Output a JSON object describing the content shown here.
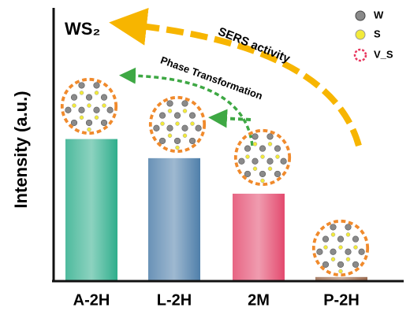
{
  "chart_data": {
    "type": "bar",
    "title": "WS₂",
    "y_label": "Intensity (a.u.)",
    "categories": [
      "A-2H",
      "L-2H",
      "2M",
      "P-2H"
    ],
    "values": [
      52,
      45,
      32,
      1.5
    ],
    "colors": [
      "#2fae8c",
      "#4f7faa",
      "#e34a6e",
      "#9a6a4e"
    ],
    "ylim": [
      0,
      100
    ],
    "legend": [
      "W",
      "S",
      "V_S"
    ],
    "annotations": [
      "SERS activity",
      "Phase Transformation"
    ]
  }
}
